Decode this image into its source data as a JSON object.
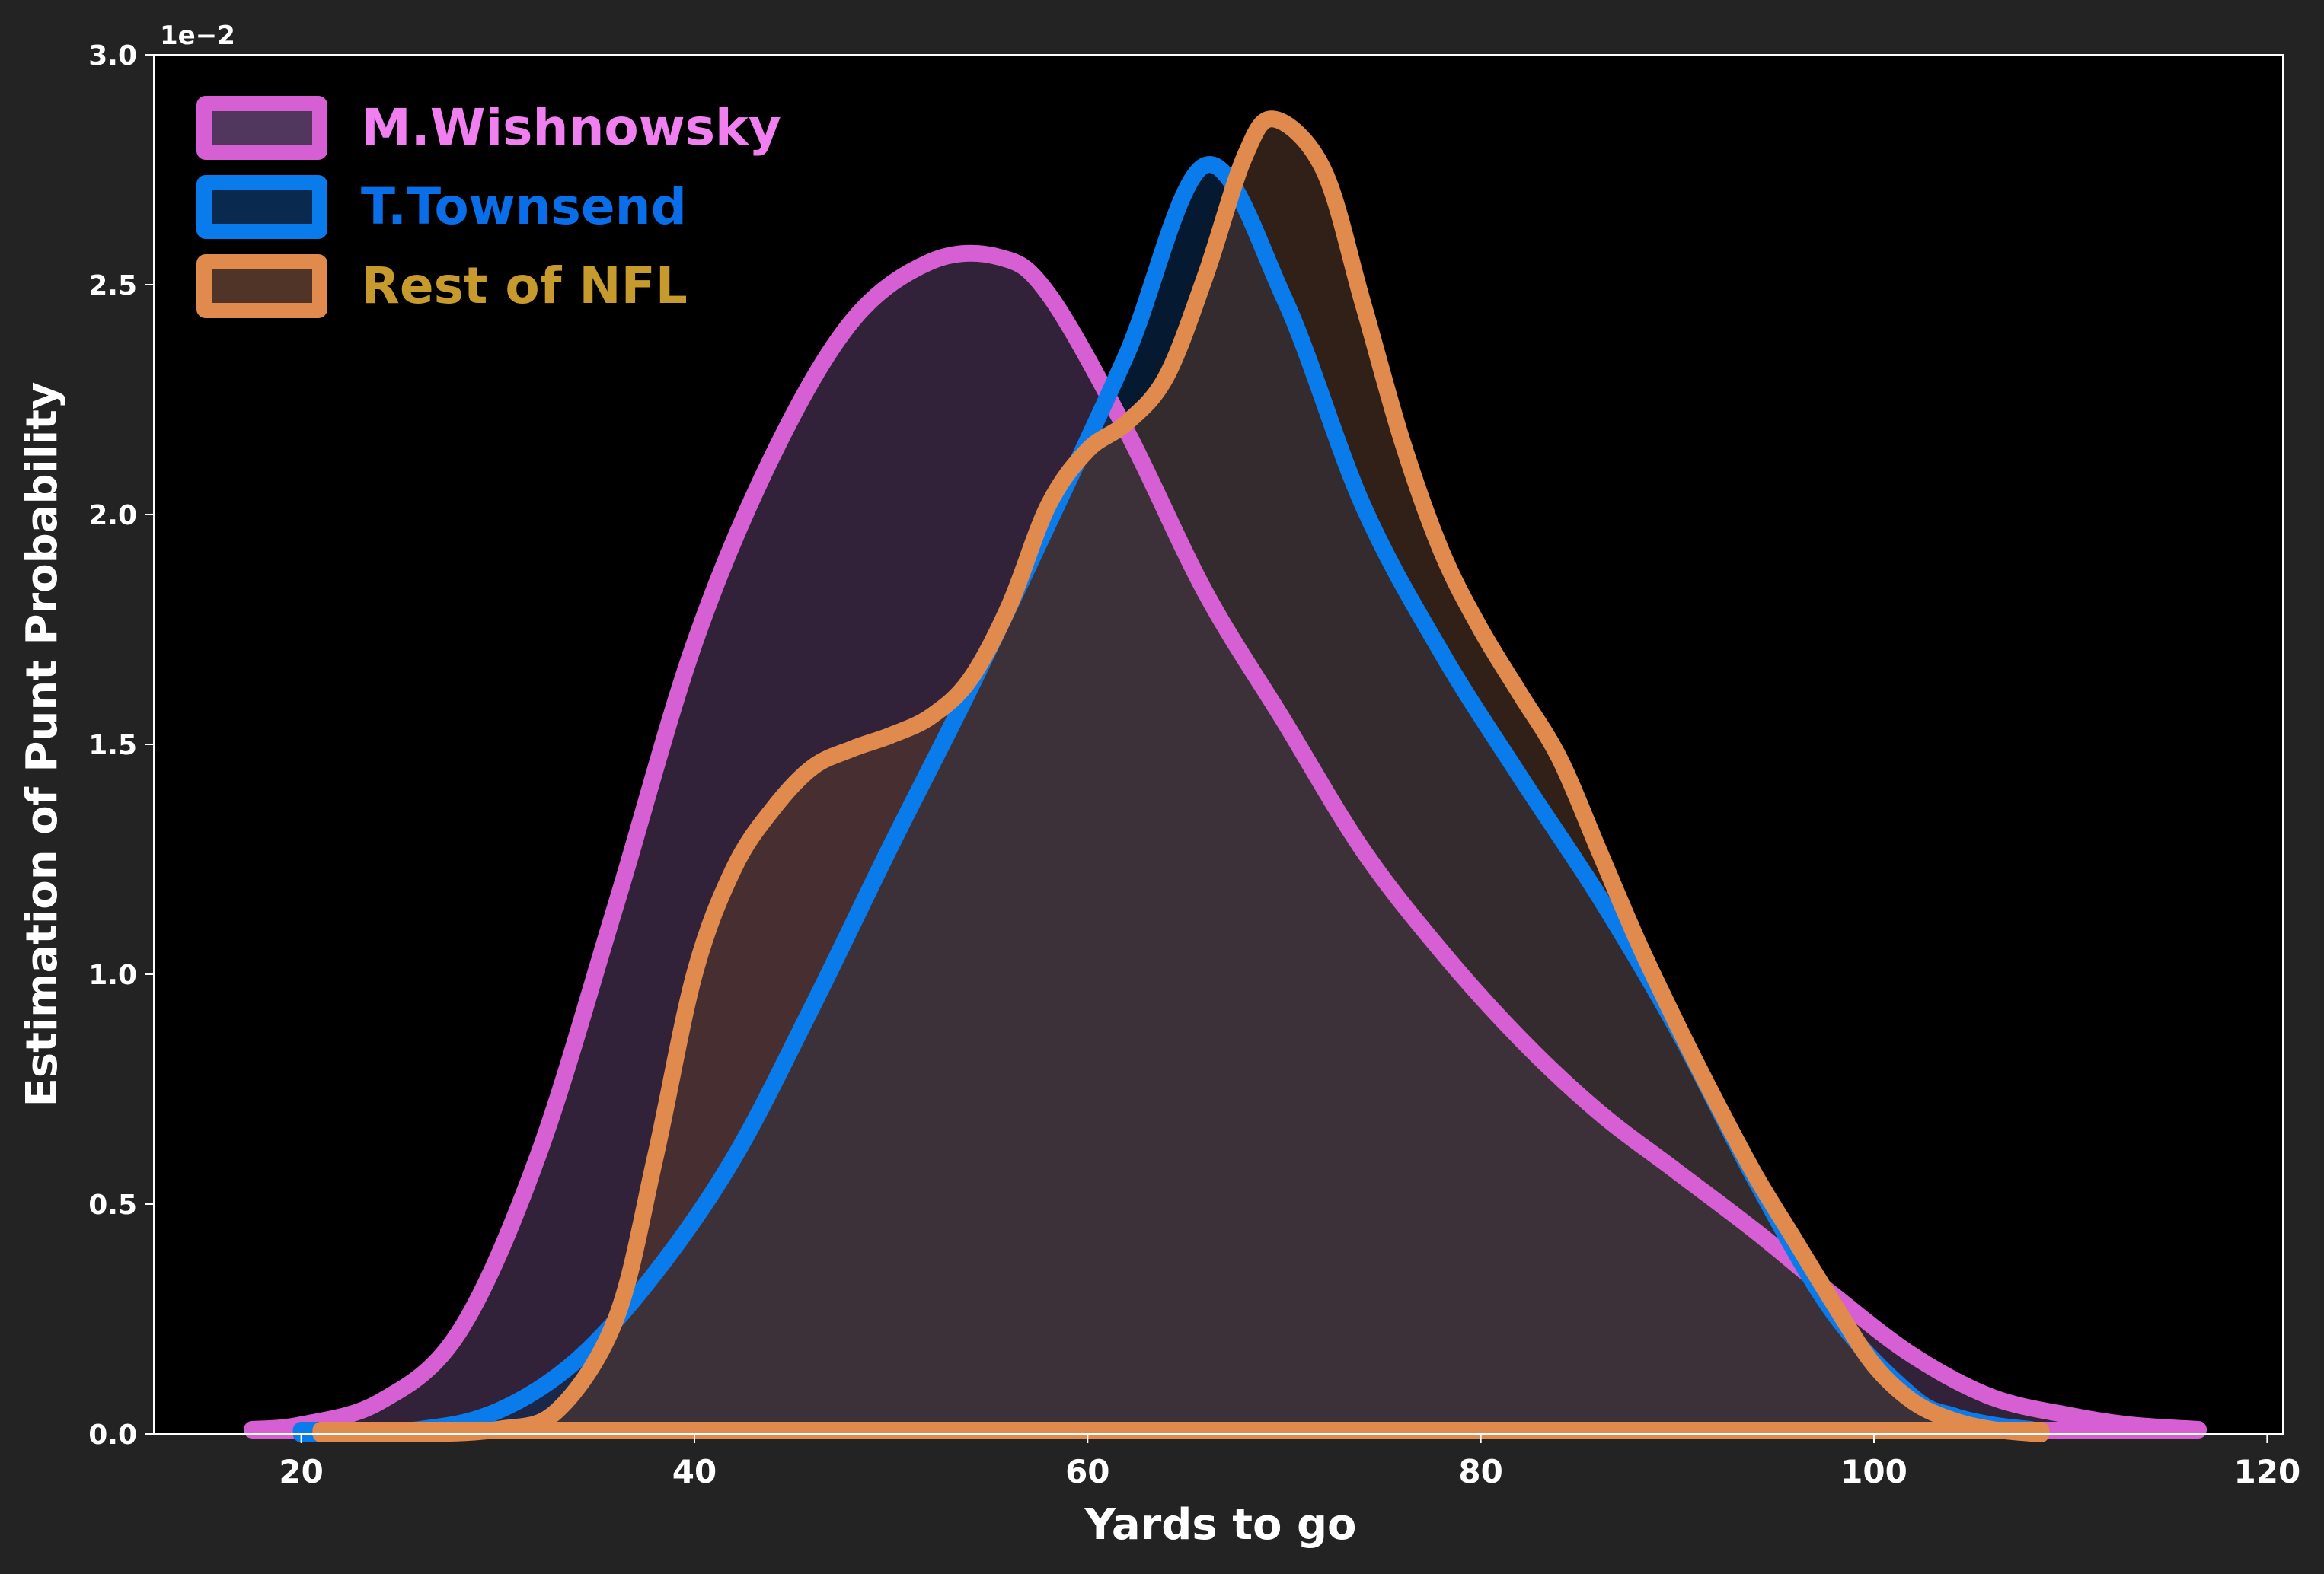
{
  "chart_data": {
    "type": "area",
    "title": "",
    "xlabel": "Yards to go",
    "ylabel": "Estimation of Punt Probability",
    "y_offset_text": "1e−2",
    "xlim": [
      12.5,
      120.8
    ],
    "ylim": [
      0,
      3.0
    ],
    "x_ticks": [
      20,
      40,
      60,
      80,
      100,
      120
    ],
    "x_tick_labels": [
      "20",
      "40",
      "60",
      "80",
      "100",
      "120"
    ],
    "y_ticks": [
      0,
      0.5,
      1.0,
      1.5,
      2.0,
      2.5,
      3.0
    ],
    "y_tick_labels": [
      "0.0",
      "0.5",
      "1.0",
      "1.5",
      "2.0",
      "2.5",
      "3.0"
    ],
    "grid": false,
    "legend_position": "upper-left",
    "series": [
      {
        "name": "M.Wishnowsky",
        "line_color": "#d55fd3",
        "fill_color": "#5a3c68",
        "legend_text_color": "#f07ff0",
        "x": [
          17.5,
          20,
          24,
          28,
          32,
          36,
          40,
          44,
          48,
          52,
          55.5,
          58,
          62,
          66,
          70,
          74,
          78,
          82,
          86,
          90,
          94,
          98,
          102,
          106,
          110,
          113,
          116.5
        ],
        "y": [
          0.01,
          0.02,
          0.07,
          0.22,
          0.6,
          1.15,
          1.72,
          2.13,
          2.42,
          2.55,
          2.56,
          2.48,
          2.18,
          1.83,
          1.55,
          1.27,
          1.05,
          0.86,
          0.7,
          0.57,
          0.44,
          0.3,
          0.17,
          0.08,
          0.04,
          0.02,
          0.01
        ]
      },
      {
        "name": "T.Townsend",
        "line_color": "#0a7bea",
        "fill_color": "#0a2e58",
        "legend_text_color": "#0a6ee8",
        "x": [
          20,
          26,
          30,
          34,
          38,
          42,
          46,
          50,
          54,
          58,
          62,
          66,
          70,
          74,
          78,
          82,
          86,
          90,
          94,
          98,
          102,
          104,
          106,
          108
        ],
        "y": [
          0.0,
          0.01,
          0.05,
          0.16,
          0.35,
          0.6,
          0.93,
          1.28,
          1.62,
          1.98,
          2.35,
          2.76,
          2.47,
          2.02,
          1.7,
          1.43,
          1.17,
          0.88,
          0.55,
          0.26,
          0.08,
          0.04,
          0.02,
          0.01
        ]
      },
      {
        "name": "Rest of NFL",
        "line_color": "#e08a4e",
        "fill_color": "#5a3a2c",
        "legend_text_color": "#c69a2c",
        "x": [
          21,
          26,
          30,
          33,
          36,
          38,
          40,
          42,
          44,
          46,
          48,
          50,
          52,
          54,
          56,
          58,
          60,
          62,
          64,
          66,
          68,
          69.5,
          72,
          74,
          76,
          78,
          80,
          82,
          84,
          86,
          88,
          90,
          92,
          94,
          96,
          98,
          100,
          102,
          104,
          106,
          108.5
        ],
        "y": [
          0.0,
          0.0,
          0.01,
          0.05,
          0.25,
          0.6,
          1.0,
          1.23,
          1.36,
          1.45,
          1.49,
          1.52,
          1.56,
          1.64,
          1.8,
          2.02,
          2.14,
          2.2,
          2.3,
          2.52,
          2.78,
          2.86,
          2.75,
          2.46,
          2.16,
          1.92,
          1.75,
          1.61,
          1.47,
          1.27,
          1.07,
          0.89,
          0.72,
          0.56,
          0.42,
          0.28,
          0.15,
          0.07,
          0.03,
          0.01,
          0.0
        ]
      }
    ]
  }
}
